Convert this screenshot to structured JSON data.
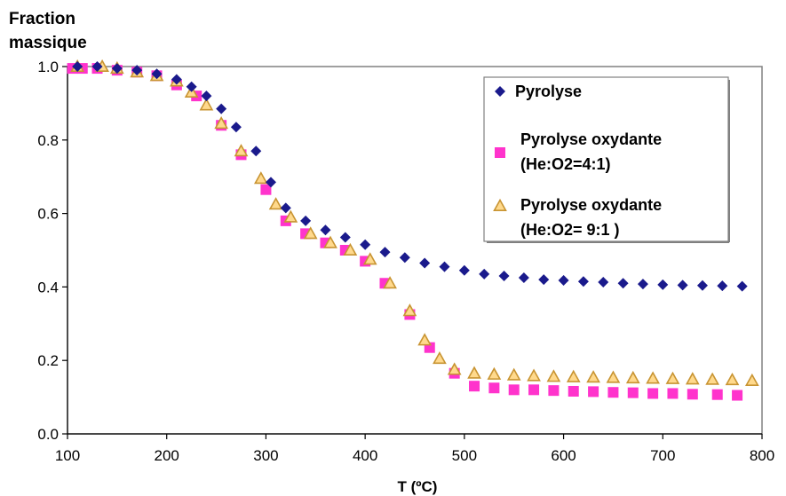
{
  "chart_data": {
    "type": "scatter",
    "ylabel_line1": "Fraction",
    "ylabel_line2": "massique",
    "xlabel": "T (ºC)",
    "xlim": [
      100,
      800
    ],
    "ylim": [
      0.0,
      1.0
    ],
    "x_ticks": [
      100,
      200,
      300,
      400,
      500,
      600,
      700,
      800
    ],
    "y_ticks": [
      "0.0",
      "0.2",
      "0.4",
      "0.6",
      "0.8",
      "1.0"
    ],
    "y_tick_values": [
      0.0,
      0.2,
      0.4,
      0.6,
      0.8,
      1.0
    ],
    "grid": false,
    "legend_position": "top-right",
    "series": [
      {
        "name": "Pyrolyse",
        "marker": "diamond",
        "color": "#1a1a8c",
        "x": [
          110,
          130,
          150,
          170,
          190,
          210,
          225,
          240,
          255,
          270,
          290,
          305,
          320,
          340,
          360,
          380,
          400,
          420,
          440,
          460,
          480,
          500,
          520,
          540,
          560,
          580,
          600,
          620,
          640,
          660,
          680,
          700,
          720,
          740,
          760,
          780
        ],
        "y": [
          1.0,
          1.0,
          0.995,
          0.99,
          0.98,
          0.965,
          0.945,
          0.92,
          0.885,
          0.835,
          0.77,
          0.685,
          0.615,
          0.58,
          0.555,
          0.535,
          0.515,
          0.495,
          0.48,
          0.465,
          0.455,
          0.445,
          0.435,
          0.43,
          0.425,
          0.42,
          0.418,
          0.415,
          0.413,
          0.41,
          0.408,
          0.406,
          0.405,
          0.404,
          0.403,
          0.402
        ]
      },
      {
        "name_line1": "Pyrolyse oxydante",
        "name_line2": "(He:O2=4:1)",
        "marker": "square",
        "color": "#ff33cc",
        "x": [
          105,
          115,
          130,
          150,
          170,
          190,
          210,
          230,
          255,
          275,
          300,
          320,
          340,
          360,
          380,
          400,
          420,
          445,
          465,
          490,
          510,
          530,
          550,
          570,
          590,
          610,
          630,
          650,
          670,
          690,
          710,
          730,
          755,
          775
        ],
        "y": [
          0.995,
          0.995,
          0.995,
          0.99,
          0.985,
          0.975,
          0.95,
          0.92,
          0.84,
          0.76,
          0.665,
          0.58,
          0.545,
          0.52,
          0.5,
          0.47,
          0.41,
          0.325,
          0.235,
          0.165,
          0.13,
          0.125,
          0.12,
          0.12,
          0.118,
          0.116,
          0.115,
          0.113,
          0.112,
          0.11,
          0.11,
          0.108,
          0.107,
          0.105
        ]
      },
      {
        "name_line1": "Pyrolyse oxydante",
        "name_line2": "(He:O2= 9:1 )",
        "marker": "triangle",
        "color": "#c89432",
        "x": [
          110,
          135,
          150,
          170,
          190,
          210,
          225,
          240,
          255,
          275,
          295,
          310,
          325,
          345,
          365,
          385,
          405,
          425,
          445,
          460,
          475,
          490,
          510,
          530,
          550,
          570,
          590,
          610,
          630,
          650,
          670,
          690,
          710,
          730,
          750,
          770,
          790
        ],
        "y": [
          1.0,
          1.0,
          0.995,
          0.985,
          0.975,
          0.96,
          0.93,
          0.895,
          0.845,
          0.77,
          0.695,
          0.625,
          0.59,
          0.545,
          0.52,
          0.5,
          0.475,
          0.41,
          0.335,
          0.255,
          0.205,
          0.175,
          0.165,
          0.162,
          0.16,
          0.158,
          0.156,
          0.155,
          0.154,
          0.153,
          0.152,
          0.151,
          0.15,
          0.149,
          0.148,
          0.147,
          0.145
        ]
      }
    ]
  }
}
